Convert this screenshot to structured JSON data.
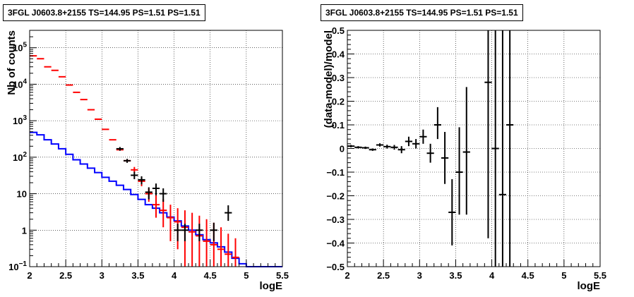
{
  "chart_data": [
    {
      "type": "histogram",
      "title": "3FGL J0603.8+2155 TS=144.95 PS=1.51 PS=1.51",
      "xlabel": "logE",
      "ylabel": "Nb of counts",
      "xlim": [
        2,
        5.5
      ],
      "ylim": [
        0.1,
        300000
      ],
      "yscale": "log",
      "grid": true,
      "x_ticks": [
        "2",
        "2.5",
        "3",
        "3.5",
        "4",
        "4.5",
        "5",
        "5.5"
      ],
      "y_ticks": [
        {
          "value": 0.1,
          "label": "10",
          "exp": "−1"
        },
        {
          "value": 1,
          "label": "1",
          "exp": ""
        },
        {
          "value": 10,
          "label": "10",
          "exp": ""
        },
        {
          "value": 100,
          "label": "10",
          "exp": "2"
        },
        {
          "value": 1000,
          "label": "10",
          "exp": "3"
        },
        {
          "value": 10000,
          "label": "10",
          "exp": "4"
        },
        {
          "value": 100000,
          "label": "10",
          "exp": "5"
        }
      ],
      "bin_width": 0.1,
      "series": [
        {
          "color": "#0000ff",
          "style": "step",
          "bin_lo": [
            2.0,
            2.1,
            2.2,
            2.3,
            2.4,
            2.5,
            2.6,
            2.7,
            2.8,
            2.9,
            3.0,
            3.1,
            3.2,
            3.3,
            3.4,
            3.5,
            3.6,
            3.7,
            3.8,
            3.9,
            4.0,
            4.1,
            4.2,
            4.3,
            4.4,
            4.5,
            4.6,
            4.7,
            4.8,
            4.9,
            5.0,
            5.1,
            5.2,
            5.3,
            5.4
          ],
          "values": [
            480,
            410,
            300,
            230,
            170,
            120,
            85,
            65,
            50,
            38,
            28,
            22,
            17,
            13,
            9.5,
            7,
            5,
            4,
            3,
            2.3,
            1.8,
            1.3,
            1.0,
            0.75,
            0.55,
            0.45,
            0.35,
            0.25,
            0.17,
            0.12,
            0.1,
            0.1,
            0.1,
            0.1,
            0.1
          ]
        },
        {
          "color": "#ff0000",
          "style": "errorbar",
          "x": [
            2.05,
            2.15,
            2.25,
            2.35,
            2.45,
            2.55,
            2.65,
            2.75,
            2.85,
            2.95,
            3.05,
            3.15,
            3.25,
            3.35,
            3.45,
            3.55,
            3.65,
            3.75,
            3.85,
            3.95,
            4.05,
            4.15,
            4.25,
            4.35,
            4.45,
            4.55,
            4.65,
            4.75,
            4.85
          ],
          "y": [
            60000,
            50000,
            30000,
            24000,
            16000,
            9500,
            6000,
            3800,
            2000,
            1100,
            580,
            300,
            160,
            80,
            45,
            22,
            10,
            5,
            3.5,
            2.2,
            1.7,
            1.2,
            0.9,
            0.7,
            0.5,
            0.4,
            0.3,
            0.22,
            0.18
          ],
          "ylow": [
            60000,
            50000,
            30000,
            24000,
            16000,
            9500,
            6000,
            3800,
            2000,
            1100,
            580,
            300,
            160,
            75,
            38,
            16,
            6,
            2.2,
            1.2,
            0.5,
            0.3,
            0.1,
            0.1,
            0.1,
            0.1,
            0.1,
            0.1,
            0.1,
            0.1
          ],
          "yhigh": [
            60000,
            50000,
            30000,
            24000,
            16000,
            9500,
            6000,
            3800,
            2000,
            1100,
            580,
            300,
            160,
            85,
            54,
            28,
            14,
            9,
            7,
            5,
            4,
            3.5,
            3,
            2.5,
            2,
            1.6,
            1.2,
            0.8,
            0.6
          ]
        },
        {
          "color": "#000000",
          "style": "errorbar",
          "x": [
            3.25,
            3.35,
            3.45,
            3.55,
            3.65,
            3.75,
            3.85,
            4.05,
            4.15,
            4.35,
            4.55,
            4.75
          ],
          "y": [
            170,
            80,
            32,
            24,
            11,
            14,
            10,
            1.0,
            1.0,
            1.0,
            1.0,
            3.0
          ],
          "ylow": [
            150,
            70,
            25,
            18,
            7,
            9,
            6,
            0.5,
            0.5,
            0.5,
            0.5,
            1.8
          ],
          "yhigh": [
            190,
            90,
            40,
            30,
            15,
            19,
            14,
            1.5,
            1.5,
            1.5,
            1.6,
            4.8
          ]
        }
      ]
    },
    {
      "type": "scatter",
      "title": "3FGL J0603.8+2155 TS=144.95 PS=1.51 PS=1.51",
      "xlabel": "logE",
      "ylabel": "(data-model)/model",
      "xlim": [
        2,
        5.5
      ],
      "ylim": [
        -0.5,
        0.5
      ],
      "grid": true,
      "x_ticks": [
        "2",
        "2.5",
        "3",
        "3.5",
        "4",
        "4.5",
        "5",
        "5.5"
      ],
      "y_ticks": [
        "−0.5",
        "−0.4",
        "−0.3",
        "−0.2",
        "−0.1",
        "0",
        "0.1",
        "0.2",
        "0.3",
        "0.4",
        "0.5"
      ],
      "series": [
        {
          "color": "#000000",
          "x": [
            2.05,
            2.15,
            2.25,
            2.35,
            2.45,
            2.55,
            2.65,
            2.75,
            2.85,
            2.95,
            3.05,
            3.15,
            3.25,
            3.35,
            3.45,
            3.55,
            3.65,
            3.95,
            4.05,
            4.15,
            4.25
          ],
          "y": [
            0.01,
            0.005,
            0.003,
            -0.005,
            0.015,
            0.008,
            0.005,
            -0.005,
            0.03,
            0.02,
            0.05,
            -0.02,
            0.1,
            -0.04,
            -0.27,
            -0.1,
            -0.015,
            0.28,
            0.0,
            -0.195,
            0.1
          ],
          "ylow": [
            0.005,
            0.0,
            -0.002,
            -0.01,
            0.008,
            0.0,
            -0.005,
            -0.02,
            0.01,
            0.0,
            0.02,
            -0.06,
            0.04,
            -0.15,
            -0.41,
            -0.28,
            -0.28,
            -0.38,
            -0.5,
            -0.5,
            -0.5
          ],
          "yhigh": [
            0.015,
            0.01,
            0.008,
            0.0,
            0.022,
            0.016,
            0.015,
            0.01,
            0.05,
            0.04,
            0.08,
            0.02,
            0.175,
            0.07,
            -0.13,
            0.09,
            0.26,
            0.5,
            0.5,
            0.5,
            0.5
          ]
        }
      ]
    }
  ]
}
